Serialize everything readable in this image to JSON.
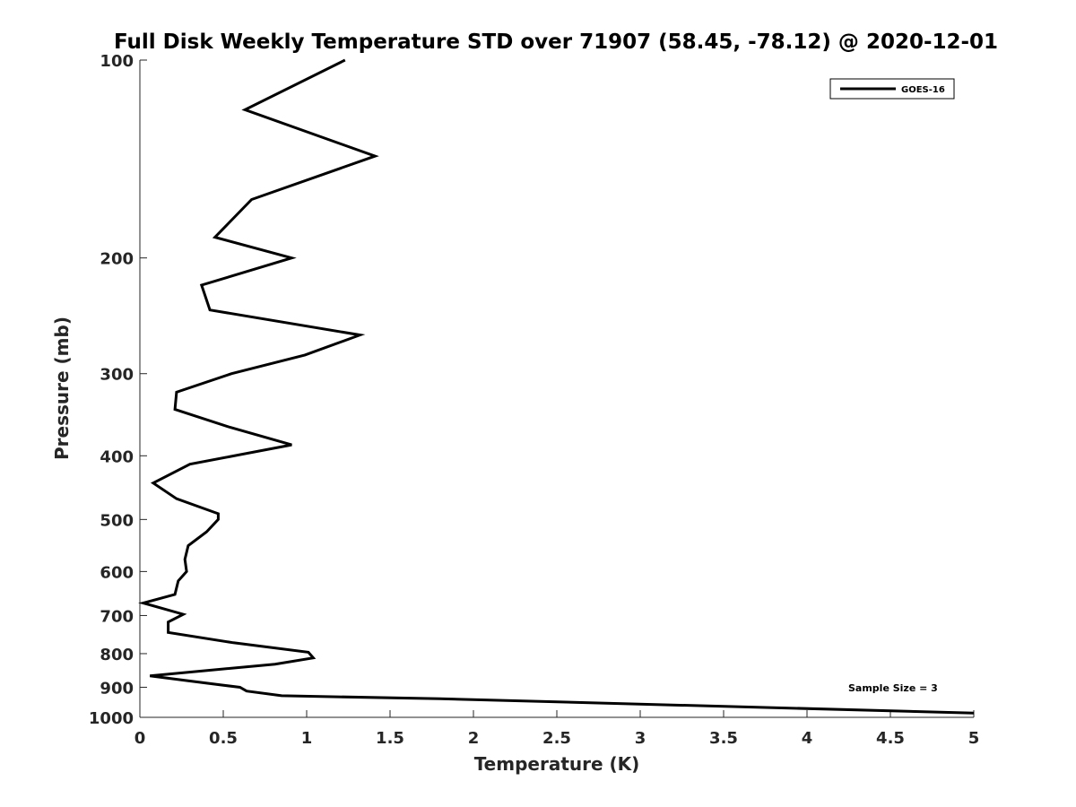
{
  "chart_data": {
    "type": "line",
    "title": "Full Disk Weekly Temperature STD over 71907 (58.45, -78.12) @ 2020-12-01",
    "xlabel": "Temperature (K)",
    "ylabel": "Pressure (mb)",
    "xlim": [
      0,
      5
    ],
    "ylim": [
      100,
      1000
    ],
    "y_scale": "log",
    "y_reversed": true,
    "x_ticks": [
      0,
      0.5,
      1,
      1.5,
      2,
      2.5,
      3,
      3.5,
      4,
      4.5,
      5
    ],
    "x_tick_labels": [
      "0",
      "0.5",
      "1",
      "1.5",
      "2",
      "2.5",
      "3",
      "3.5",
      "4",
      "4.5",
      "5"
    ],
    "y_ticks": [
      100,
      200,
      300,
      400,
      500,
      600,
      700,
      800,
      900,
      1000
    ],
    "y_tick_labels": [
      "100",
      "200",
      "300",
      "400",
      "500",
      "600",
      "700",
      "800",
      "900",
      "1000"
    ],
    "grid": false,
    "legend_position": "top-right",
    "series": [
      {
        "name": "GOES-16",
        "color": "#000000",
        "x": [
          1.23,
          0.63,
          1.41,
          0.67,
          0.45,
          0.91,
          0.37,
          0.42,
          1.32,
          0.99,
          0.55,
          0.22,
          0.21,
          0.54,
          0.91,
          0.3,
          0.08,
          0.22,
          0.47,
          0.47,
          0.4,
          0.29,
          0.27,
          0.28,
          0.23,
          0.21,
          0.02,
          0.26,
          0.17,
          0.17,
          0.56,
          1.01,
          1.04,
          0.81,
          0.06,
          0.29,
          0.6,
          0.64,
          0.85,
          1.8,
          5.0
        ],
        "y": [
          100,
          119,
          140,
          163,
          186,
          200,
          220,
          240,
          262,
          281,
          300,
          320,
          340,
          362,
          385,
          412,
          440,
          465,
          490,
          500,
          522,
          548,
          575,
          600,
          620,
          650,
          670,
          697,
          716,
          743,
          770,
          796,
          812,
          830,
          865,
          880,
          900,
          912,
          927,
          937,
          985
        ]
      }
    ],
    "annotations": [
      "Sample Size = 3"
    ]
  }
}
